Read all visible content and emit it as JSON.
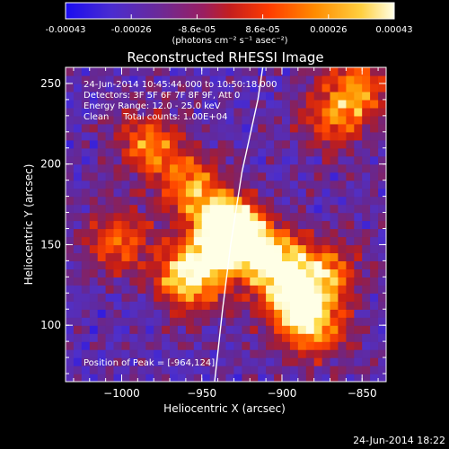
{
  "colors": {
    "background": "#000000",
    "text": "#ffffff",
    "colormap": [
      "#1a0cf0",
      "#5a33b0",
      "#8a2a8c",
      "#c41e3a",
      "#ff5a00",
      "#ffa000",
      "#ffe060",
      "#ffffe0"
    ]
  },
  "colorbar": {
    "tick_labels": [
      "-0.00043",
      "-0.00026",
      "-8.6e-05",
      "8.6e-05",
      "0.00026",
      "0.00043"
    ],
    "unit_label": "(photons cm⁻² s⁻¹ asec⁻²)"
  },
  "info": {
    "time_range": "24-Jun-2014 10:45:44.000 to 10:50:18.000",
    "detectors": "Detectors: 3F 5F 6F 7F 8F 9F, Att 0",
    "energy": "Energy Range: 12.0 - 25.0 keV",
    "method": "Clean     Total counts: 1.00E+04",
    "peak": "Position of Peak = [-964,124]"
  },
  "footer": {
    "timestamp": "24-Jun-2014 18:22"
  },
  "chart_data": {
    "type": "heatmap",
    "title": "Reconstructed RHESSI Image",
    "xlabel": "Heliocentric X (arcsec)",
    "ylabel": "Heliocentric Y (arcsec)",
    "xlim": [
      -1035,
      -835
    ],
    "ylim": [
      65,
      260
    ],
    "x_ticks": [
      -1000,
      -950,
      -900,
      -850
    ],
    "x_tick_labels": [
      "−1000",
      "−950",
      "−900",
      "−850"
    ],
    "y_ticks": [
      100,
      150,
      200,
      250
    ],
    "y_tick_labels": [
      "100",
      "150",
      "200",
      "250"
    ],
    "colorbar_range": [
      -0.00043,
      0.00043
    ],
    "limb_curve": [
      [
        -942,
        65
      ],
      [
        -937,
        110
      ],
      [
        -932,
        150
      ],
      [
        -925,
        195
      ],
      [
        -915,
        240
      ],
      [
        -912,
        260
      ]
    ],
    "bright_sources": [
      {
        "x": -985,
        "y": 210,
        "peak": 0.6
      },
      {
        "x": -1005,
        "y": 150,
        "peak": 0.55
      },
      {
        "x": -960,
        "y": 185,
        "peak": 0.6
      },
      {
        "x": -940,
        "y": 160,
        "peak": 0.75
      },
      {
        "x": -930,
        "y": 150,
        "peak": 1.0
      },
      {
        "x": -960,
        "y": 128,
        "peak": 0.95
      },
      {
        "x": -905,
        "y": 135,
        "peak": 0.8
      },
      {
        "x": -895,
        "y": 110,
        "peak": 0.7
      },
      {
        "x": -880,
        "y": 95,
        "peak": 0.55
      },
      {
        "x": -875,
        "y": 130,
        "peak": 0.6
      },
      {
        "x": -870,
        "y": 225,
        "peak": 0.5
      },
      {
        "x": -855,
        "y": 245,
        "peak": 0.55
      }
    ],
    "peak_position": [
      -964,
      124
    ]
  }
}
